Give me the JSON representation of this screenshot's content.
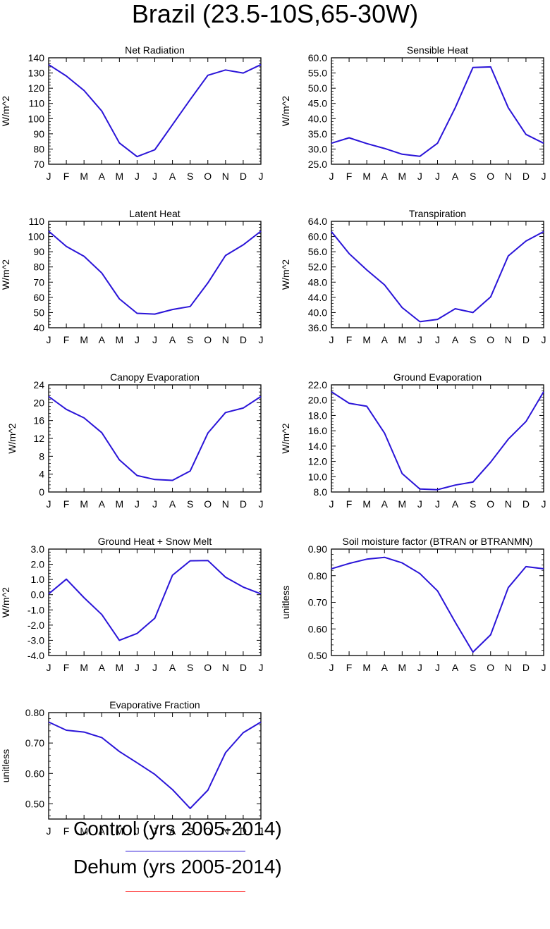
{
  "title": "Brazil (23.5-10S,65-30W)",
  "colors": {
    "control": "#2a14d8",
    "dehum": "#ff2222"
  },
  "legend": [
    {
      "label": "Control (yrs 2005-2014)",
      "color": "#2a14d8"
    },
    {
      "label": "Dehum (yrs 2005-2014)",
      "color": "#ff2222"
    }
  ],
  "chart_data": [
    {
      "type": "line",
      "title": "Net Radiation",
      "ylabel": "W/m^2",
      "categories": [
        "J",
        "F",
        "M",
        "A",
        "M",
        "J",
        "J",
        "A",
        "S",
        "O",
        "N",
        "D",
        "J"
      ],
      "ylim": [
        70,
        140
      ],
      "yticks": [
        "70",
        "80",
        "90",
        "100",
        "110",
        "120",
        "130",
        "140"
      ],
      "series": [
        {
          "values": [
            135.5,
            128,
            118.5,
            105,
            84,
            75,
            79.5,
            96,
            112.5,
            128.5,
            132,
            130,
            135.5
          ]
        }
      ]
    },
    {
      "type": "line",
      "title": "Sensible Heat",
      "ylabel": "W/m^2",
      "categories": [
        "J",
        "F",
        "M",
        "A",
        "M",
        "J",
        "J",
        "A",
        "S",
        "O",
        "N",
        "D",
        "J"
      ],
      "ylim": [
        25,
        60
      ],
      "yticks": [
        "25.0",
        "30.0",
        "35.0",
        "40.0",
        "45.0",
        "50.0",
        "55.0",
        "60.0"
      ],
      "series": [
        {
          "values": [
            31.9,
            33.7,
            31.8,
            30.2,
            28.3,
            27.6,
            31.9,
            43.6,
            56.8,
            57,
            43.6,
            34.8,
            31.9
          ]
        }
      ]
    },
    {
      "type": "line",
      "title": "Latent Heat",
      "ylabel": "W/m^2",
      "categories": [
        "J",
        "F",
        "M",
        "A",
        "M",
        "J",
        "J",
        "A",
        "S",
        "O",
        "N",
        "D",
        "J"
      ],
      "ylim": [
        40,
        110
      ],
      "yticks": [
        "40",
        "50",
        "60",
        "70",
        "80",
        "90",
        "100",
        "110"
      ],
      "series": [
        {
          "values": [
            103.5,
            93.5,
            87,
            76,
            59,
            49.5,
            49,
            52,
            54,
            69.5,
            87.5,
            94.5,
            103.5
          ]
        }
      ]
    },
    {
      "type": "line",
      "title": "Transpiration",
      "ylabel": "W/m^2",
      "categories": [
        "J",
        "F",
        "M",
        "A",
        "M",
        "J",
        "J",
        "A",
        "S",
        "O",
        "N",
        "D",
        "J"
      ],
      "ylim": [
        36,
        64
      ],
      "yticks": [
        "36.0",
        "40.0",
        "44.0",
        "48.0",
        "52.0",
        "56.0",
        "60.0",
        "64.0"
      ],
      "series": [
        {
          "values": [
            61.3,
            55.5,
            51.2,
            47.3,
            41.3,
            37.6,
            38.2,
            41,
            40,
            44.1,
            54.9,
            58.8,
            61.3
          ]
        }
      ]
    },
    {
      "type": "line",
      "title": "Canopy Evaporation",
      "ylabel": "W/m^2",
      "categories": [
        "J",
        "F",
        "M",
        "A",
        "M",
        "J",
        "J",
        "A",
        "S",
        "O",
        "N",
        "D",
        "J"
      ],
      "ylim": [
        0,
        24
      ],
      "yticks": [
        "0",
        "4",
        "8",
        "12",
        "16",
        "20",
        "24"
      ],
      "series": [
        {
          "values": [
            21.4,
            18.5,
            16.6,
            13.3,
            7.2,
            3.7,
            2.8,
            2.6,
            4.7,
            13.2,
            17.8,
            18.8,
            21.4
          ]
        }
      ]
    },
    {
      "type": "line",
      "title": "Ground Evaporation",
      "ylabel": "W/m^2",
      "categories": [
        "J",
        "F",
        "M",
        "A",
        "M",
        "J",
        "J",
        "A",
        "S",
        "O",
        "N",
        "D",
        "J"
      ],
      "ylim": [
        8,
        22
      ],
      "yticks": [
        "8.0",
        "10.0",
        "12.0",
        "14.0",
        "16.0",
        "18.0",
        "20.0",
        "22.0"
      ],
      "series": [
        {
          "values": [
            21.1,
            19.6,
            19.2,
            15.7,
            10.4,
            8.4,
            8.3,
            8.9,
            9.3,
            11.9,
            14.9,
            17.2,
            21.1
          ]
        }
      ]
    },
    {
      "type": "line",
      "title": "Ground Heat + Snow Melt",
      "ylabel": "W/m^2",
      "categories": [
        "J",
        "F",
        "M",
        "A",
        "M",
        "J",
        "J",
        "A",
        "S",
        "O",
        "N",
        "D",
        "J"
      ],
      "ylim": [
        -4,
        3
      ],
      "yticks": [
        "-4.0",
        "-3.0",
        "-2.0",
        "-1.0",
        "0.0",
        "1.0",
        "2.0",
        "3.0"
      ],
      "series": [
        {
          "values": [
            0.05,
            1.02,
            -0.2,
            -1.3,
            -3,
            -2.55,
            -1.55,
            1.28,
            2.23,
            2.25,
            1.15,
            0.5,
            0.05
          ]
        }
      ]
    },
    {
      "type": "line",
      "title": "Soil moisture factor (BTRAN or BTRANMN)",
      "ylabel": "unitless",
      "categories": [
        "J",
        "F",
        "M",
        "A",
        "M",
        "J",
        "J",
        "A",
        "S",
        "O",
        "N",
        "D",
        "J"
      ],
      "ylim": [
        0.5,
        0.9
      ],
      "yticks": [
        "0.50",
        "0.60",
        "0.70",
        "0.80",
        "0.90"
      ],
      "series": [
        {
          "values": [
            0.826,
            0.846,
            0.862,
            0.869,
            0.848,
            0.808,
            0.743,
            0.625,
            0.513,
            0.578,
            0.755,
            0.834,
            0.826
          ]
        }
      ]
    },
    {
      "type": "line",
      "title": "Evaporative Fraction",
      "ylabel": "unitless",
      "categories": [
        "J",
        "F",
        "M",
        "A",
        "M",
        "J",
        "J",
        "A",
        "S",
        "O",
        "N",
        "D",
        "J"
      ],
      "ylim": [
        0.45,
        0.8
      ],
      "yticks": [
        "0.50",
        "0.60",
        "0.70",
        "0.80"
      ],
      "series": [
        {
          "values": [
            0.769,
            0.742,
            0.736,
            0.718,
            0.672,
            0.635,
            0.597,
            0.547,
            0.485,
            0.545,
            0.668,
            0.734,
            0.769
          ]
        }
      ]
    }
  ]
}
